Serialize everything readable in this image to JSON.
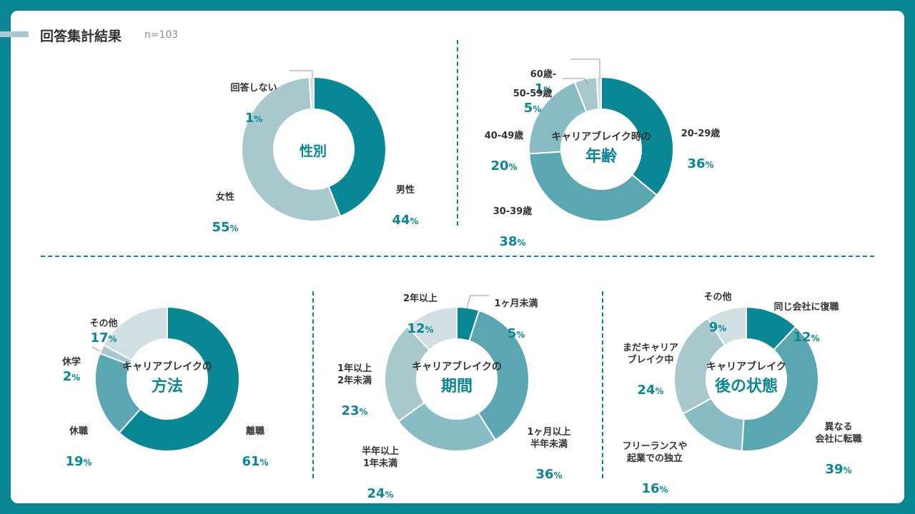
{
  "header": {
    "title": "回答集計結果",
    "sample": "n=103"
  },
  "colors": {
    "accent": "#0a8794",
    "mid": "#5aa7b1",
    "light": "#87bcc4",
    "lighter": "#a9c8ce",
    "lightest": "#cfdfe2"
  },
  "chart_data": [
    {
      "type": "pie",
      "center_label": "性別",
      "slices": [
        {
          "label": "男性",
          "value": 44,
          "color": "#0a8794"
        },
        {
          "label": "女性",
          "value": 55,
          "color": "#a9c8ce"
        },
        {
          "label": "回答しない",
          "value": 1,
          "color": "#cfdfe2"
        }
      ]
    },
    {
      "type": "pie",
      "center_label_top": "キャリアブレイク時の",
      "center_label": "年齢",
      "slices": [
        {
          "label": "20-29歳",
          "value": 36,
          "color": "#0a8794"
        },
        {
          "label": "30-39歳",
          "value": 38,
          "color": "#5aa7b1"
        },
        {
          "label": "40-49歳",
          "value": 20,
          "color": "#87bcc4"
        },
        {
          "label": "50-59歳",
          "value": 5,
          "color": "#a9c8ce"
        },
        {
          "label": "60歳-",
          "value": 1,
          "color": "#cfdfe2"
        }
      ]
    },
    {
      "type": "pie",
      "center_label_top": "キャリアブレイクの",
      "center_label": "方法",
      "slices": [
        {
          "label": "離職",
          "value": 61,
          "color": "#0a8794"
        },
        {
          "label": "休職",
          "value": 19,
          "color": "#5aa7b1"
        },
        {
          "label": "休学",
          "value": 2,
          "color": "#a9c8ce"
        },
        {
          "label": "その他",
          "value": 17,
          "color": "#cfdfe2"
        }
      ]
    },
    {
      "type": "pie",
      "center_label_top": "キャリアブレイクの",
      "center_label": "期間",
      "slices": [
        {
          "label": "1ヶ月未満",
          "value": 5,
          "color": "#0a8794"
        },
        {
          "label": "1ヶ月以上\n半年未満",
          "value": 36,
          "color": "#5aa7b1"
        },
        {
          "label": "半年以上\n1年未満",
          "value": 24,
          "color": "#87bcc4"
        },
        {
          "label": "1年以上\n2年未満",
          "value": 23,
          "color": "#a9c8ce"
        },
        {
          "label": "2年以上",
          "value": 12,
          "color": "#cfdfe2"
        }
      ]
    },
    {
      "type": "pie",
      "center_label_top": "キャリアブレイク",
      "center_label": "後の状態",
      "slices": [
        {
          "label": "同じ会社に復職",
          "value": 12,
          "color": "#0a8794"
        },
        {
          "label": "異なる\n会社に転職",
          "value": 39,
          "color": "#5aa7b1"
        },
        {
          "label": "フリーランスや\n起業での独立",
          "value": 16,
          "color": "#87bcc4"
        },
        {
          "label": "まだキャリア\nブレイク中",
          "value": 24,
          "color": "#a9c8ce"
        },
        {
          "label": "その他",
          "value": 9,
          "color": "#cfdfe2"
        }
      ]
    }
  ]
}
